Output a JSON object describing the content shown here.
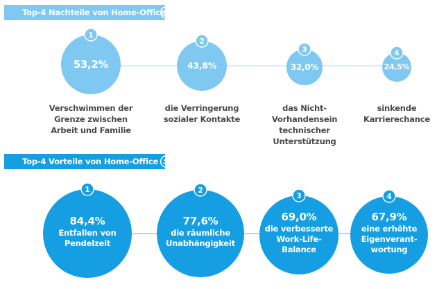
{
  "colors": {
    "disadvantage": "#7ec8f1",
    "advantage": "#159ee2",
    "connector_light": "#cde9f8",
    "connector_dark": "#8ccdef",
    "label_text": "#4a4a4a"
  },
  "disadvantages": {
    "title": "Top-4 Nachteile von Home-Office",
    "icon": "sad-face-icon",
    "items": [
      {
        "rank": "1",
        "value": "53,2%",
        "label_lines": [
          "Verschwimmen der",
          "Grenze zwischen",
          "Arbeit und Familie"
        ]
      },
      {
        "rank": "2",
        "value": "43,8%",
        "label_lines": [
          "die Verringerung",
          "sozialer Kontakte"
        ]
      },
      {
        "rank": "3",
        "value": "32,0%",
        "label_lines": [
          "das Nicht-",
          "Vorhandensein",
          "technischer",
          "Unterstützung"
        ]
      },
      {
        "rank": "4",
        "value": "24,5%",
        "label_lines": [
          "sinkende",
          "Karrierechance"
        ]
      }
    ]
  },
  "advantages": {
    "title": "Top-4 Vorteile von Home-Office",
    "icon": "smiley-face-icon",
    "items": [
      {
        "rank": "1",
        "value": "84,4%",
        "label_lines": [
          "Entfallen von",
          "Pendelzeit"
        ]
      },
      {
        "rank": "2",
        "value": "77,6%",
        "label_lines": [
          "die räumliche",
          "Unabhängigkeit"
        ]
      },
      {
        "rank": "3",
        "value": "69,0%",
        "label_lines": [
          "die verbesserte",
          "Work-Life-",
          "Balance"
        ]
      },
      {
        "rank": "4",
        "value": "67,9%",
        "label_lines": [
          "eine erhöhte",
          "Eigenverant-",
          "wortung"
        ]
      }
    ]
  },
  "chart_data": [
    {
      "type": "bubble",
      "title": "Top-4 Nachteile von Home-Office",
      "categories": [
        "Verschwimmen der Grenze zwischen Arbeit und Familie",
        "die Verringerung sozialer Kontakte",
        "das Nicht-Vorhandensein technischer Unterstützung",
        "sinkende Karrierechance"
      ],
      "values": [
        53.2,
        43.8,
        32.0,
        24.5
      ],
      "unit": "%"
    },
    {
      "type": "bubble",
      "title": "Top-4 Vorteile von Home-Office",
      "categories": [
        "Entfallen von Pendelzeit",
        "die räumliche Unabhängigkeit",
        "die verbesserte Work-Life-Balance",
        "eine erhöhte Eigenverantwortung"
      ],
      "values": [
        84.4,
        77.6,
        69.0,
        67.9
      ],
      "unit": "%"
    }
  ]
}
